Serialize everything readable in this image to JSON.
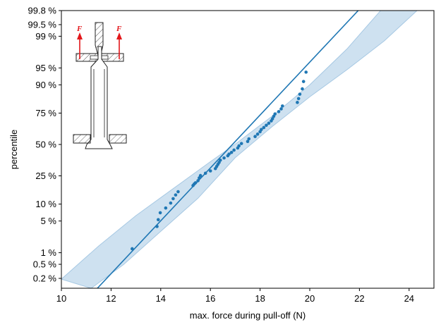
{
  "chart_data": {
    "type": "scatter",
    "xlabel": "max. force during pull-off (N)",
    "ylabel": "percentile",
    "xlim": [
      10,
      25
    ],
    "ylim": [
      0.001,
      0.998
    ],
    "yscale": "normal-probability",
    "x_ticks": [
      10,
      12,
      14,
      16,
      18,
      20,
      22,
      24
    ],
    "y_ticks": [
      {
        "p": 0.002,
        "label": "0.2 %"
      },
      {
        "p": 0.005,
        "label": "0.5 %"
      },
      {
        "p": 0.01,
        "label": "1 %"
      },
      {
        "p": 0.05,
        "label": "5 %"
      },
      {
        "p": 0.1,
        "label": "10 %"
      },
      {
        "p": 0.25,
        "label": "25 %"
      },
      {
        "p": 0.5,
        "label": "50 %"
      },
      {
        "p": 0.75,
        "label": "75 %"
      },
      {
        "p": 0.9,
        "label": "90 %"
      },
      {
        "p": 0.95,
        "label": "95 %"
      },
      {
        "p": 0.99,
        "label": "99 %"
      },
      {
        "p": 0.995,
        "label": "99.5 %"
      },
      {
        "p": 0.998,
        "label": "99.8 %"
      }
    ],
    "grid": false,
    "colors": {
      "points": "#1f77b4",
      "fit": "#1f77b4",
      "band": "#a6c8e3",
      "force_arrow": "#e3171b"
    },
    "fit_line": {
      "x": [
        11.45,
        21.95
      ],
      "p": [
        0.001,
        0.998
      ]
    },
    "confidence_band": {
      "upper": [
        [
          10.0,
          0.0019
        ],
        [
          11.5,
          0.0145
        ],
        [
          13.0,
          0.063
        ],
        [
          14.5,
          0.171
        ],
        [
          16.0,
          0.356
        ],
        [
          17.0,
          0.503
        ],
        [
          18.5,
          0.73
        ],
        [
          20.0,
          0.9
        ],
        [
          21.5,
          0.98
        ],
        [
          23.0,
          0.9985
        ]
      ],
      "lower": [
        [
          11.2,
          0.001
        ],
        [
          12.5,
          0.0049
        ],
        [
          14.0,
          0.031
        ],
        [
          15.5,
          0.124
        ],
        [
          17.0,
          0.389
        ],
        [
          18.5,
          0.652
        ],
        [
          20.0,
          0.847
        ],
        [
          21.5,
          0.946
        ],
        [
          23.0,
          0.987
        ],
        [
          24.5,
          0.9985
        ]
      ]
    },
    "points": [
      {
        "x": 12.85,
        "p": 0.0125
      },
      {
        "x": 13.85,
        "p": 0.039
      },
      {
        "x": 13.9,
        "p": 0.053
      },
      {
        "x": 13.98,
        "p": 0.071
      },
      {
        "x": 14.2,
        "p": 0.086
      },
      {
        "x": 14.4,
        "p": 0.104
      },
      {
        "x": 14.5,
        "p": 0.122
      },
      {
        "x": 14.6,
        "p": 0.139
      },
      {
        "x": 14.7,
        "p": 0.155
      },
      {
        "x": 15.3,
        "p": 0.189
      },
      {
        "x": 15.35,
        "p": 0.198
      },
      {
        "x": 15.4,
        "p": 0.205
      },
      {
        "x": 15.5,
        "p": 0.218
      },
      {
        "x": 15.55,
        "p": 0.236
      },
      {
        "x": 15.6,
        "p": 0.252
      },
      {
        "x": 15.8,
        "p": 0.268
      },
      {
        "x": 16.0,
        "p": 0.285
      },
      {
        "x": 16.2,
        "p": 0.302
      },
      {
        "x": 16.25,
        "p": 0.318
      },
      {
        "x": 16.3,
        "p": 0.334
      },
      {
        "x": 16.35,
        "p": 0.35
      },
      {
        "x": 16.4,
        "p": 0.368
      },
      {
        "x": 16.55,
        "p": 0.386
      },
      {
        "x": 16.7,
        "p": 0.404
      },
      {
        "x": 16.75,
        "p": 0.418
      },
      {
        "x": 16.85,
        "p": 0.432
      },
      {
        "x": 16.95,
        "p": 0.452
      },
      {
        "x": 17.1,
        "p": 0.47
      },
      {
        "x": 17.15,
        "p": 0.488
      },
      {
        "x": 17.25,
        "p": 0.508
      },
      {
        "x": 17.5,
        "p": 0.526
      },
      {
        "x": 17.55,
        "p": 0.548
      },
      {
        "x": 17.8,
        "p": 0.568
      },
      {
        "x": 17.9,
        "p": 0.588
      },
      {
        "x": 18.0,
        "p": 0.608
      },
      {
        "x": 18.05,
        "p": 0.626
      },
      {
        "x": 18.15,
        "p": 0.642
      },
      {
        "x": 18.25,
        "p": 0.66
      },
      {
        "x": 18.35,
        "p": 0.676
      },
      {
        "x": 18.45,
        "p": 0.694
      },
      {
        "x": 18.5,
        "p": 0.71
      },
      {
        "x": 18.55,
        "p": 0.728
      },
      {
        "x": 18.6,
        "p": 0.744
      },
      {
        "x": 18.75,
        "p": 0.76
      },
      {
        "x": 18.85,
        "p": 0.778
      },
      {
        "x": 18.9,
        "p": 0.796
      },
      {
        "x": 19.5,
        "p": 0.817
      },
      {
        "x": 19.55,
        "p": 0.838
      },
      {
        "x": 19.6,
        "p": 0.86
      },
      {
        "x": 19.7,
        "p": 0.884
      },
      {
        "x": 19.75,
        "p": 0.912
      },
      {
        "x": 19.85,
        "p": 0.94
      }
    ],
    "inset": {
      "force_label": "F"
    }
  }
}
